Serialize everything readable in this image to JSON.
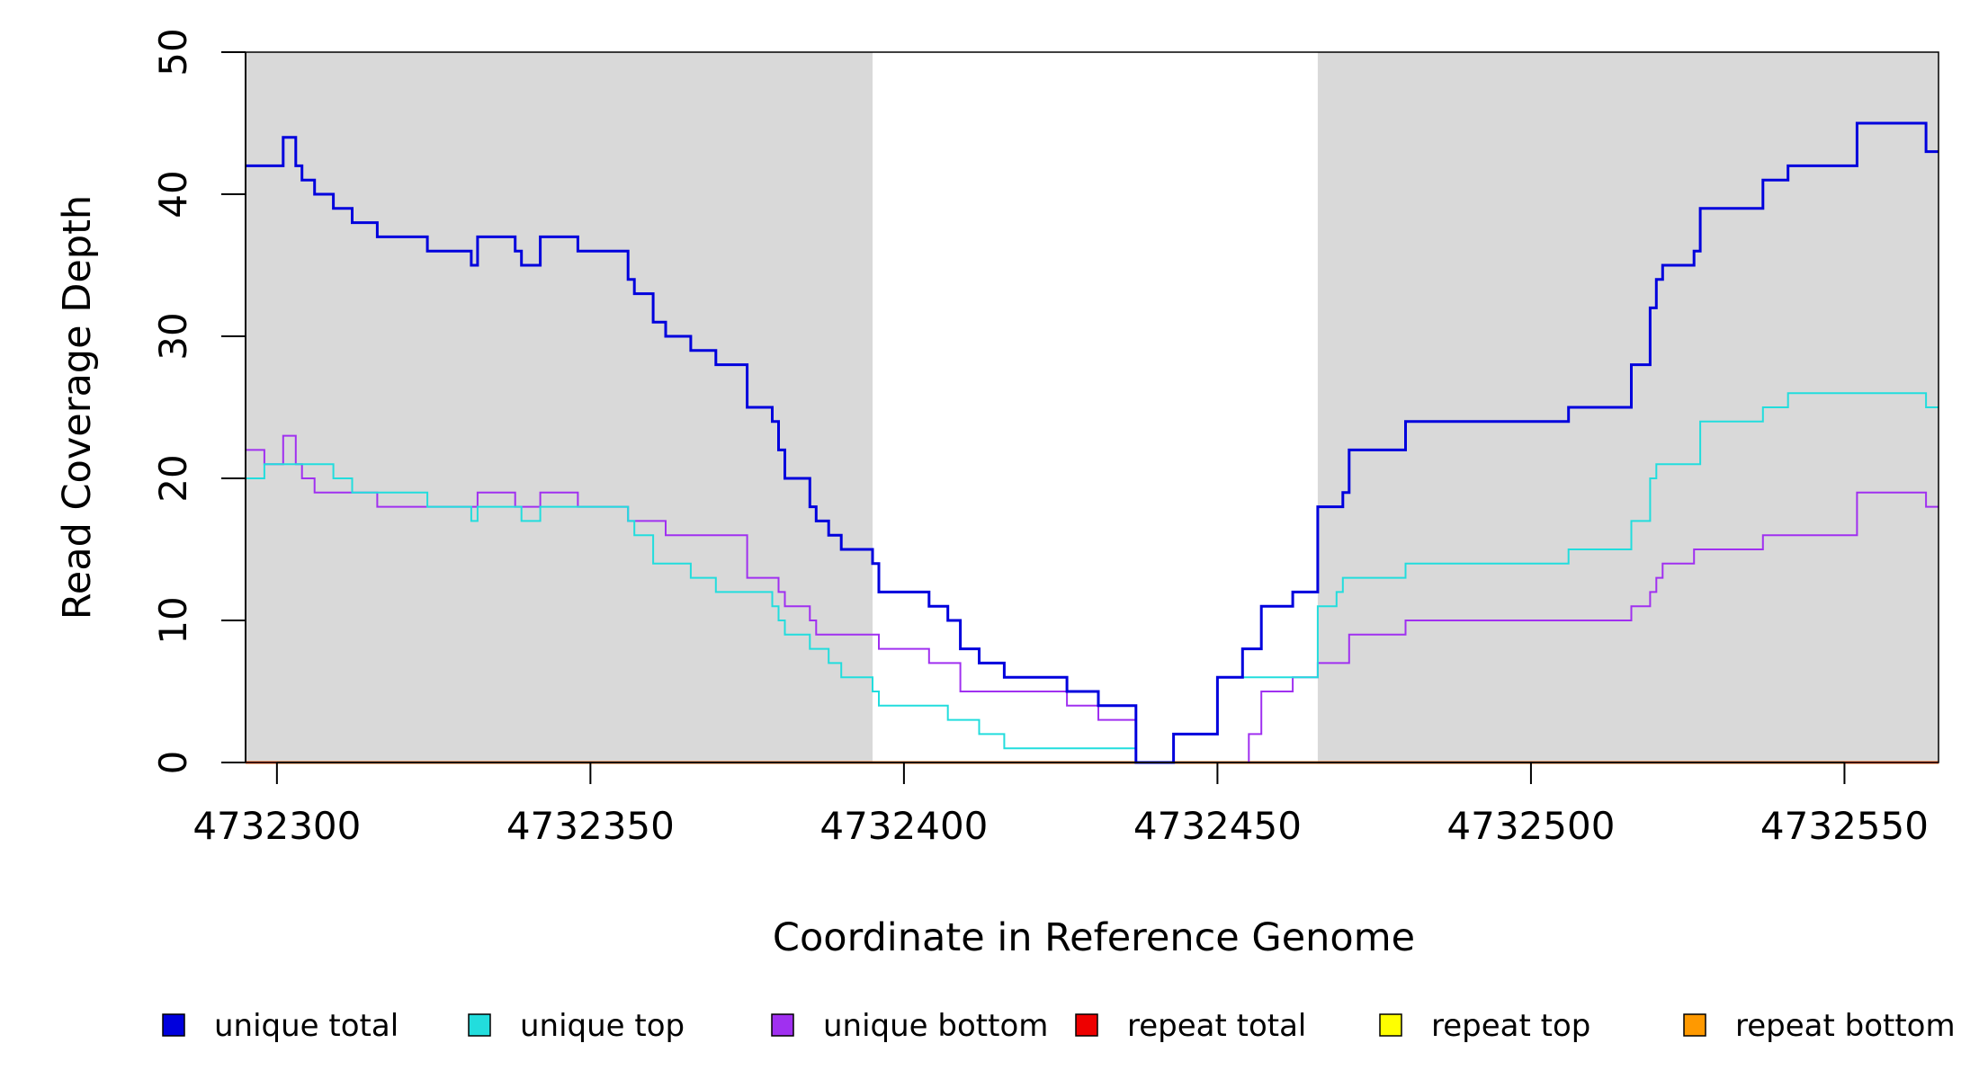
{
  "chart_data": {
    "type": "line",
    "step": true,
    "title": "",
    "xlabel": "Coordinate in Reference Genome",
    "ylabel": "Read Coverage Depth",
    "xlim": [
      4732295,
      4732565
    ],
    "ylim": [
      0,
      50
    ],
    "x_ticks": [
      4732300,
      4732350,
      4732400,
      4732450,
      4732500,
      4732550
    ],
    "y_ticks": [
      0,
      10,
      20,
      30,
      40,
      50
    ],
    "grid": false,
    "shaded_regions": [
      {
        "x_start": 4732295,
        "x_end": 4732395,
        "color": "#d9d9d9"
      },
      {
        "x_start": 4732466,
        "x_end": 4732565,
        "color": "#d9d9d9"
      }
    ],
    "legend_position": "bottom",
    "series": [
      {
        "name": "unique total",
        "color": "#0000dd",
        "points": [
          [
            4732295,
            42
          ],
          [
            4732301,
            44
          ],
          [
            4732303,
            42
          ],
          [
            4732304,
            41
          ],
          [
            4732306,
            40
          ],
          [
            4732309,
            39
          ],
          [
            4732312,
            38
          ],
          [
            4732316,
            37
          ],
          [
            4732324,
            36
          ],
          [
            4732331,
            35
          ],
          [
            4732332,
            37
          ],
          [
            4732338,
            36
          ],
          [
            4732339,
            35
          ],
          [
            4732342,
            37
          ],
          [
            4732348,
            36
          ],
          [
            4732356,
            34
          ],
          [
            4732357,
            33
          ],
          [
            4732360,
            31
          ],
          [
            4732362,
            30
          ],
          [
            4732366,
            29
          ],
          [
            4732370,
            28
          ],
          [
            4732375,
            25
          ],
          [
            4732379,
            24
          ],
          [
            4732380,
            22
          ],
          [
            4732381,
            20
          ],
          [
            4732385,
            18
          ],
          [
            4732386,
            17
          ],
          [
            4732388,
            16
          ],
          [
            4732390,
            15
          ],
          [
            4732395,
            14
          ],
          [
            4732396,
            12
          ],
          [
            4732404,
            11
          ],
          [
            4732407,
            10
          ],
          [
            4732409,
            8
          ],
          [
            4732412,
            7
          ],
          [
            4732416,
            6
          ],
          [
            4732426,
            5
          ],
          [
            4732431,
            4
          ],
          [
            4732437,
            0
          ],
          [
            4732443,
            2
          ],
          [
            4732450,
            6
          ],
          [
            4732454,
            8
          ],
          [
            4732457,
            11
          ],
          [
            4732462,
            12
          ],
          [
            4732466,
            18
          ],
          [
            4732470,
            19
          ],
          [
            4732471,
            22
          ],
          [
            4732480,
            24
          ],
          [
            4732506,
            25
          ],
          [
            4732516,
            28
          ],
          [
            4732519,
            32
          ],
          [
            4732520,
            34
          ],
          [
            4732521,
            35
          ],
          [
            4732526,
            36
          ],
          [
            4732527,
            39
          ],
          [
            4732537,
            41
          ],
          [
            4732541,
            42
          ],
          [
            4732552,
            45
          ],
          [
            4732563,
            43
          ],
          [
            4732565,
            43
          ]
        ]
      },
      {
        "name": "unique top",
        "color": "#22dddd",
        "points": [
          [
            4732295,
            20
          ],
          [
            4732298,
            21
          ],
          [
            4732304,
            21
          ],
          [
            4732309,
            20
          ],
          [
            4732312,
            19
          ],
          [
            4732324,
            18
          ],
          [
            4732331,
            17
          ],
          [
            4732332,
            18
          ],
          [
            4732338,
            18
          ],
          [
            4732339,
            17
          ],
          [
            4732342,
            18
          ],
          [
            4732348,
            18
          ],
          [
            4732356,
            17
          ],
          [
            4732357,
            16
          ],
          [
            4732360,
            14
          ],
          [
            4732366,
            13
          ],
          [
            4732370,
            12
          ],
          [
            4732375,
            12
          ],
          [
            4732379,
            11
          ],
          [
            4732380,
            10
          ],
          [
            4732381,
            9
          ],
          [
            4732385,
            8
          ],
          [
            4732388,
            7
          ],
          [
            4732390,
            6
          ],
          [
            4732395,
            5
          ],
          [
            4732396,
            4
          ],
          [
            4732402,
            4
          ],
          [
            4732407,
            3
          ],
          [
            4732412,
            2
          ],
          [
            4732416,
            1
          ],
          [
            4732437,
            0
          ],
          [
            4732443,
            2
          ],
          [
            4732450,
            6
          ],
          [
            4732466,
            11
          ],
          [
            4732469,
            12
          ],
          [
            4732470,
            13
          ],
          [
            4732480,
            14
          ],
          [
            4732506,
            15
          ],
          [
            4732516,
            17
          ],
          [
            4732519,
            20
          ],
          [
            4732520,
            21
          ],
          [
            4732527,
            24
          ],
          [
            4732537,
            25
          ],
          [
            4732541,
            26
          ],
          [
            4732563,
            25
          ],
          [
            4732565,
            25
          ]
        ]
      },
      {
        "name": "unique bottom",
        "color": "#a030f0",
        "points": [
          [
            4732295,
            22
          ],
          [
            4732298,
            21
          ],
          [
            4732301,
            23
          ],
          [
            4732303,
            21
          ],
          [
            4732304,
            20
          ],
          [
            4732306,
            19
          ],
          [
            4732316,
            18
          ],
          [
            4732331,
            18
          ],
          [
            4732332,
            19
          ],
          [
            4732338,
            18
          ],
          [
            4732342,
            19
          ],
          [
            4732348,
            18
          ],
          [
            4732356,
            17
          ],
          [
            4732362,
            16
          ],
          [
            4732375,
            13
          ],
          [
            4732380,
            12
          ],
          [
            4732381,
            11
          ],
          [
            4732385,
            10
          ],
          [
            4732386,
            9
          ],
          [
            4732396,
            8
          ],
          [
            4732404,
            7
          ],
          [
            4732409,
            5
          ],
          [
            4732426,
            4
          ],
          [
            4732431,
            3
          ],
          [
            4732437,
            0
          ],
          [
            4732455,
            2
          ],
          [
            4732457,
            5
          ],
          [
            4732462,
            6
          ],
          [
            4732466,
            7
          ],
          [
            4732471,
            9
          ],
          [
            4732480,
            10
          ],
          [
            4732516,
            11
          ],
          [
            4732519,
            12
          ],
          [
            4732520,
            13
          ],
          [
            4732521,
            14
          ],
          [
            4732526,
            15
          ],
          [
            4732537,
            16
          ],
          [
            4732552,
            19
          ],
          [
            4732563,
            18
          ],
          [
            4732565,
            18
          ]
        ]
      },
      {
        "name": "repeat total",
        "color": "#ee0000",
        "points": [
          [
            4732295,
            0
          ],
          [
            4732565,
            0
          ]
        ]
      },
      {
        "name": "repeat top",
        "color": "#ffff00",
        "points": [
          [
            4732295,
            0
          ],
          [
            4732565,
            0
          ]
        ]
      },
      {
        "name": "repeat bottom",
        "color": "#ff9900",
        "points": [
          [
            4732295,
            0
          ],
          [
            4732565,
            0
          ]
        ]
      }
    ]
  }
}
